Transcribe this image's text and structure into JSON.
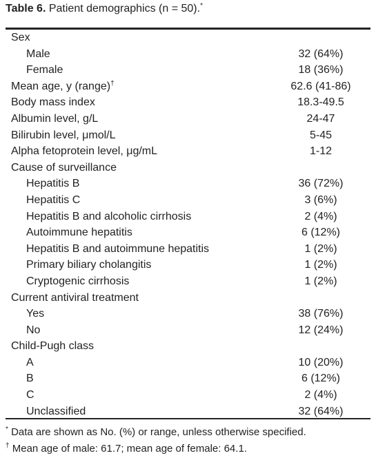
{
  "table": {
    "title": {
      "label": "Table 6.",
      "text": "Patient demographics (n = 50).",
      "mark": "*"
    },
    "rows": [
      {
        "label": "Sex",
        "items": [
          {
            "label": "Male",
            "value": "32 (64%)"
          },
          {
            "label": "Female",
            "value": "18 (36%)"
          }
        ]
      },
      {
        "label": "Mean age, y (range)",
        "mark": "†",
        "value": "62.6 (41-86)"
      },
      {
        "label": "Body mass index",
        "value": "18.3-49.5"
      },
      {
        "label": "Albumin level, g/L",
        "value": "24-47"
      },
      {
        "label": "Bilirubin level, μmol/L",
        "value": "5-45"
      },
      {
        "label": "Alpha fetoprotein level, μg/mL",
        "value": "1-12"
      },
      {
        "label": "Cause of surveillance",
        "items": [
          {
            "label": "Hepatitis B",
            "value": "36 (72%)"
          },
          {
            "label": "Hepatitis C",
            "value": "3 (6%)"
          },
          {
            "label": "Hepatitis B and alcoholic cirrhosis",
            "value": "2 (4%)"
          },
          {
            "label": "Autoimmune hepatitis",
            "value": "6 (12%)"
          },
          {
            "label": "Hepatitis B and autoimmune hepatitis",
            "value": "1 (2%)"
          },
          {
            "label": "Primary biliary cholangitis",
            "value": "1 (2%)"
          },
          {
            "label": "Cryptogenic cirrhosis",
            "value": "1 (2%)"
          }
        ]
      },
      {
        "label": "Current antiviral treatment",
        "items": [
          {
            "label": "Yes",
            "value": "38 (76%)"
          },
          {
            "label": "No",
            "value": "12 (24%)"
          }
        ]
      },
      {
        "label": "Child-Pugh class",
        "items": [
          {
            "label": "A",
            "value": "10 (20%)"
          },
          {
            "label": "B",
            "value": "6 (12%)"
          },
          {
            "label": "C",
            "value": "2 (4%)"
          },
          {
            "label": "Unclassified",
            "value": "32 (64%)"
          }
        ]
      }
    ],
    "footnotes": [
      {
        "mark": "*",
        "text": "Data are shown as No. (%) or range, unless otherwise specified."
      },
      {
        "mark": "†",
        "text": "Mean age of male: 61.7; mean age of female: 64.1."
      }
    ]
  }
}
